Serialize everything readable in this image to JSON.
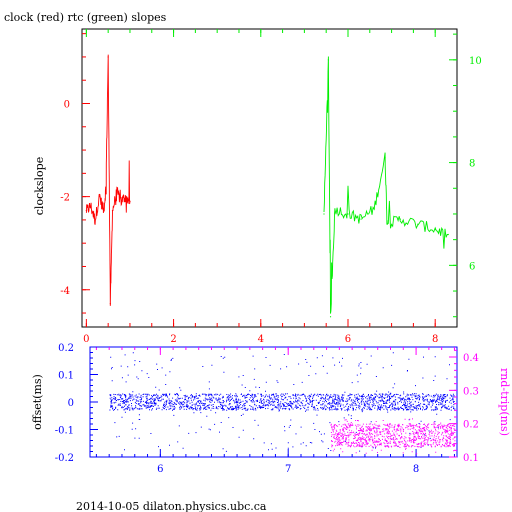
{
  "title": "clock (red) rtc (green) slopes",
  "footer": "2014-10-05  dilaton.physics.ubc.ca",
  "colors": {
    "clock": "#ff0000",
    "rtc": "#00ee00",
    "offset": "#0000ff",
    "rndtrip": "#ff00ff",
    "axis": "#000000"
  },
  "chart_data": [
    {
      "type": "line",
      "title": "clock (red) rtc (green) slopes",
      "ylabel": "clockslope",
      "xlim": [
        -0.1,
        8.5
      ],
      "ylim": [
        -4.8,
        1.6
      ],
      "xticks": [
        0,
        2,
        4,
        6,
        8
      ],
      "yticks": [
        -4,
        -2,
        0
      ],
      "y2ticks": [
        6,
        8,
        10
      ],
      "y2lim": [
        4.8,
        10.6
      ],
      "series": [
        {
          "color": "red",
          "axis": "left",
          "x": [
            0.0,
            0.1,
            0.2,
            0.3,
            0.4,
            0.45,
            0.5,
            0.55,
            0.6,
            0.7,
            0.8,
            0.9,
            1.0
          ],
          "y": [
            -2.3,
            -2.2,
            -2.5,
            -2.0,
            -2.3,
            -1.8,
            1.0,
            -4.3,
            -2.3,
            -1.9,
            -2.1,
            -2.0,
            -2.1
          ]
        },
        {
          "color": "green",
          "axis": "right",
          "x": [
            5.45,
            5.55,
            5.6,
            5.7,
            6.0,
            6.3,
            6.6,
            6.85,
            6.9,
            7.2,
            7.6,
            8.0,
            8.3
          ],
          "y": [
            7.0,
            10.0,
            5.0,
            7.1,
            7.0,
            6.9,
            7.1,
            8.1,
            6.8,
            6.9,
            6.8,
            6.7,
            6.6
          ]
        }
      ]
    },
    {
      "type": "scatter",
      "ylabel": "offset(ms)",
      "y2label": "rnd-trip(ms)",
      "xlim": [
        5.45,
        8.32
      ],
      "ylim": [
        -0.2,
        0.2
      ],
      "y2lim": [
        0.1,
        0.43
      ],
      "xticks": [
        6,
        7,
        8
      ],
      "yticks": [
        -0.2,
        -0.1,
        0,
        0.1,
        0.2
      ],
      "y2ticks": [
        0.1,
        0.2,
        0.3,
        0.4
      ],
      "series": [
        {
          "color": "blue",
          "axis": "left",
          "x_range": [
            5.6,
            8.3
          ],
          "band": [
            -0.03,
            0.03
          ],
          "outlier_range": [
            -0.18,
            0.18
          ],
          "center": 0
        },
        {
          "color": "magenta",
          "axis": "right",
          "x_range": [
            7.33,
            8.3
          ],
          "band": [
            0.13,
            0.2
          ],
          "outlier_range": [
            0.11,
            0.22
          ],
          "center": 0.16
        }
      ]
    }
  ]
}
